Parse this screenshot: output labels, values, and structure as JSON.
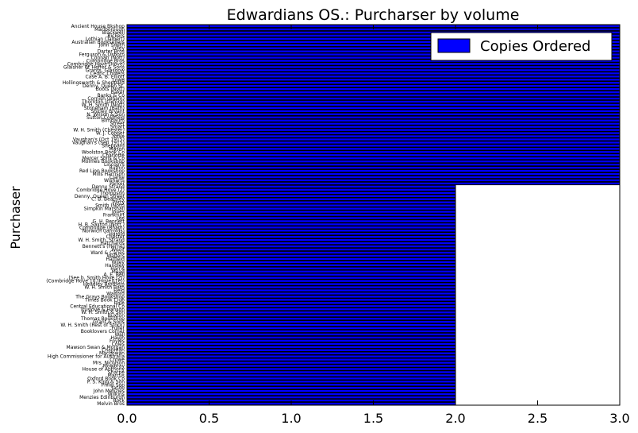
{
  "chart_data": {
    "type": "bar",
    "orientation": "horizontal",
    "title": "Edwardians OS.: Purcharser by volume",
    "xlabel": "",
    "ylabel": "Purchaser",
    "xlim": [
      0,
      3
    ],
    "xticks": [
      "0.0",
      "0.5",
      "1.0",
      "1.5",
      "2.0",
      "2.5",
      "3.0"
    ],
    "grid": false,
    "legend": {
      "position": "top-right",
      "entries": [
        "Copies Ordered"
      ]
    },
    "colors": {
      "bar_fill": "#0000ff",
      "bar_edge": "#000000"
    },
    "series": [
      {
        "name": "Copies Ordered",
        "count_value_3": 51,
        "count_value_2": 58
      }
    ],
    "categories": [
      "Ancient House Bkshop",
      "Marlborough",
      "Blackwell",
      "Bickers",
      "Lothian (Talbert)",
      "Australian Booksellers",
      "John Smith",
      "Lilley",
      "Darter Bros",
      "Ferguson & Osborn",
      "Connah (Nott)",
      "Combridge Bros",
      "Combridge Hove (Hove)",
      "Glaisher W. Heffer & Sons",
      "Grants, Glasgow",
      "Cedric Chivers",
      "Case A. B. Elliott",
      "Lowe",
      "Hollingsworth & Sheppard",
      "Denny, Queen St.",
      "Boots (Nott)",
      "Baker",
      "Banks & Co",
      "Cornish (Bham)",
      "Thornton (Oxford)",
      "W. H. Smith (Nott)",
      "Stoneham (Bath)",
      "Shirley Bryant",
      "N. Wilson & Son",
      "Sutton Coldfield",
      "Birnbaum",
      "Street",
      "Smart",
      "W. H. Smith (Chester)",
      "W. J. Cooper",
      "Yorke",
      "Vaughan's (Oct 1915)",
      "Vaughan's (Sep 1915)",
      "Sheppard",
      "Mason",
      "Woolston Book Co",
      "Charlotte",
      "Mercer Sons & Co",
      "Molmes Bookshop",
      "Lincoln's",
      "Ruthin",
      "Red Lion Bookshop",
      "Mills Harrison",
      "Clarke",
      "Wisharts",
      "Parker",
      "Denny Strand",
      "Combridge Hove (2)",
      "Thompson",
      "Denny, Queen Street",
      "C. B. Bearsley",
      "Parry",
      "Smith (Nott)",
      "Simpkin Marshall",
      "Jones",
      "Frankfurt",
      "Lee",
      "G. H. Bennett",
      "H. B. Saxton (Nott.)",
      "Combridge (Bham)",
      "Norwich (Jarrolds)",
      "Harold",
      "Chester",
      "W. H. Smith, Strand",
      "Hatchards",
      "Bennett's (Herne)",
      "Woolf",
      "Ward & Caries",
      "Walters",
      "Hatfield",
      "Wiley",
      "Handley",
      "Harris",
      "Mead",
      "A. E. Bell",
      "(See b. Smith Hove (2))",
      "(Combridge Hove 10 (Hove)(1e))",
      "Headley Brothers",
      "W. H. Smith Bath",
      "Field",
      "Walford",
      "The Grays Bookshop",
      "Times Book Club",
      "Hale",
      "Central Educational Co",
      "Truslove & Hanson",
      "W. H. Smith & Son",
      "Buxton",
      "Thomas Bookshop",
      "Grant & Sons",
      "W. H. Smith (Rest of Stock)",
      "Fuller",
      "Booklovers Corner",
      "Wall",
      "Haigh",
      "Foyles",
      "Coles",
      "Mawson Swan & Morgan",
      "Chapman",
      "Macgowan",
      "High Commissioner for Australia",
      "Crowe",
      "Mrs. Nicolson",
      "Mowbray",
      "House of Anthony",
      "Sharpe",
      "Marcus",
      "Oxford Book Co",
      "P. S. King & Son",
      "Philip Son",
      "Jacob",
      "John Menzies",
      "Wilkins",
      "Menzies Edinburgh",
      "Rock",
      "Melvin Bros"
    ]
  }
}
